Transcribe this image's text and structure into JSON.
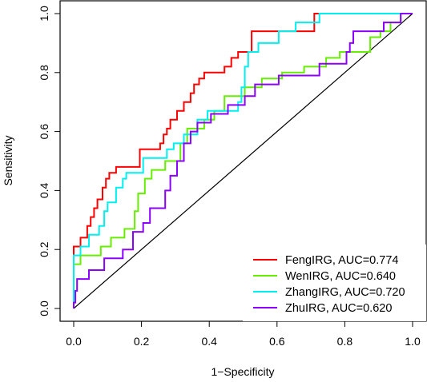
{
  "chart_data": {
    "type": "line",
    "xlabel": "1−Specificity",
    "ylabel": "Sensitivity",
    "xlim": [
      0,
      1
    ],
    "ylim": [
      0,
      1
    ],
    "x_ticks": [
      "0.0",
      "0.2",
      "0.4",
      "0.6",
      "0.8",
      "1.0"
    ],
    "y_ticks": [
      "0.0",
      "0.2",
      "0.4",
      "0.6",
      "0.8",
      "1.0"
    ],
    "reference_line": {
      "from": [
        0,
        0
      ],
      "to": [
        1,
        1
      ],
      "color": "#000000"
    },
    "legend_position": "bottom-right",
    "series": [
      {
        "name": "FengIRG, AUC=0.774",
        "color": "#ff0000",
        "points": [
          [
            0,
            0
          ],
          [
            0,
            0.21
          ],
          [
            0.02,
            0.21
          ],
          [
            0.02,
            0.24
          ],
          [
            0.04,
            0.24
          ],
          [
            0.04,
            0.28
          ],
          [
            0.05,
            0.28
          ],
          [
            0.05,
            0.31
          ],
          [
            0.06,
            0.31
          ],
          [
            0.06,
            0.34
          ],
          [
            0.07,
            0.34
          ],
          [
            0.07,
            0.37
          ],
          [
            0.085,
            0.37
          ],
          [
            0.085,
            0.41
          ],
          [
            0.095,
            0.41
          ],
          [
            0.095,
            0.44
          ],
          [
            0.105,
            0.44
          ],
          [
            0.105,
            0.46
          ],
          [
            0.125,
            0.46
          ],
          [
            0.125,
            0.48
          ],
          [
            0.195,
            0.48
          ],
          [
            0.195,
            0.54
          ],
          [
            0.255,
            0.54
          ],
          [
            0.255,
            0.56
          ],
          [
            0.265,
            0.56
          ],
          [
            0.265,
            0.59
          ],
          [
            0.275,
            0.59
          ],
          [
            0.275,
            0.61
          ],
          [
            0.285,
            0.61
          ],
          [
            0.285,
            0.64
          ],
          [
            0.305,
            0.64
          ],
          [
            0.305,
            0.67
          ],
          [
            0.325,
            0.67
          ],
          [
            0.325,
            0.7
          ],
          [
            0.345,
            0.7
          ],
          [
            0.345,
            0.73
          ],
          [
            0.355,
            0.73
          ],
          [
            0.355,
            0.76
          ],
          [
            0.37,
            0.76
          ],
          [
            0.37,
            0.78
          ],
          [
            0.385,
            0.78
          ],
          [
            0.385,
            0.8
          ],
          [
            0.445,
            0.8
          ],
          [
            0.445,
            0.82
          ],
          [
            0.465,
            0.82
          ],
          [
            0.465,
            0.85
          ],
          [
            0.485,
            0.85
          ],
          [
            0.485,
            0.87
          ],
          [
            0.525,
            0.87
          ],
          [
            0.525,
            0.94
          ],
          [
            0.71,
            0.94
          ],
          [
            0.71,
            1.0
          ],
          [
            1,
            1
          ]
        ]
      },
      {
        "name": "WenIRG, AUC=0.640",
        "color": "#66ee00",
        "points": [
          [
            0,
            0
          ],
          [
            0,
            0.15
          ],
          [
            0.02,
            0.15
          ],
          [
            0.02,
            0.18
          ],
          [
            0.08,
            0.18
          ],
          [
            0.08,
            0.21
          ],
          [
            0.11,
            0.21
          ],
          [
            0.11,
            0.24
          ],
          [
            0.15,
            0.24
          ],
          [
            0.15,
            0.27
          ],
          [
            0.18,
            0.27
          ],
          [
            0.18,
            0.33
          ],
          [
            0.19,
            0.33
          ],
          [
            0.19,
            0.39
          ],
          [
            0.21,
            0.39
          ],
          [
            0.21,
            0.44
          ],
          [
            0.23,
            0.44
          ],
          [
            0.23,
            0.47
          ],
          [
            0.27,
            0.47
          ],
          [
            0.27,
            0.5
          ],
          [
            0.315,
            0.5
          ],
          [
            0.315,
            0.56
          ],
          [
            0.335,
            0.56
          ],
          [
            0.335,
            0.61
          ],
          [
            0.385,
            0.61
          ],
          [
            0.385,
            0.64
          ],
          [
            0.415,
            0.64
          ],
          [
            0.415,
            0.67
          ],
          [
            0.445,
            0.67
          ],
          [
            0.445,
            0.72
          ],
          [
            0.505,
            0.72
          ],
          [
            0.505,
            0.75
          ],
          [
            0.555,
            0.75
          ],
          [
            0.555,
            0.78
          ],
          [
            0.615,
            0.78
          ],
          [
            0.615,
            0.8
          ],
          [
            0.68,
            0.8
          ],
          [
            0.68,
            0.82
          ],
          [
            0.745,
            0.82
          ],
          [
            0.745,
            0.85
          ],
          [
            0.785,
            0.85
          ],
          [
            0.785,
            0.87
          ],
          [
            0.875,
            0.87
          ],
          [
            0.875,
            0.92
          ],
          [
            0.905,
            0.92
          ],
          [
            0.905,
            0.94
          ],
          [
            0.935,
            0.94
          ],
          [
            0.935,
            0.97
          ],
          [
            0.965,
            0.97
          ],
          [
            0.965,
            1.0
          ],
          [
            1,
            1
          ]
        ]
      },
      {
        "name": "ZhangIRG, AUC=0.720",
        "color": "#00f0f0",
        "points": [
          [
            0,
            0
          ],
          [
            0,
            0.18
          ],
          [
            0.02,
            0.18
          ],
          [
            0.02,
            0.21
          ],
          [
            0.045,
            0.21
          ],
          [
            0.045,
            0.25
          ],
          [
            0.075,
            0.25
          ],
          [
            0.075,
            0.28
          ],
          [
            0.09,
            0.28
          ],
          [
            0.09,
            0.33
          ],
          [
            0.1,
            0.33
          ],
          [
            0.1,
            0.36
          ],
          [
            0.125,
            0.36
          ],
          [
            0.125,
            0.41
          ],
          [
            0.145,
            0.41
          ],
          [
            0.145,
            0.44
          ],
          [
            0.155,
            0.44
          ],
          [
            0.155,
            0.46
          ],
          [
            0.205,
            0.46
          ],
          [
            0.205,
            0.51
          ],
          [
            0.275,
            0.51
          ],
          [
            0.275,
            0.54
          ],
          [
            0.295,
            0.54
          ],
          [
            0.295,
            0.56
          ],
          [
            0.325,
            0.56
          ],
          [
            0.325,
            0.59
          ],
          [
            0.365,
            0.59
          ],
          [
            0.365,
            0.64
          ],
          [
            0.395,
            0.64
          ],
          [
            0.395,
            0.67
          ],
          [
            0.485,
            0.67
          ],
          [
            0.485,
            0.7
          ],
          [
            0.495,
            0.7
          ],
          [
            0.495,
            0.75
          ],
          [
            0.505,
            0.75
          ],
          [
            0.505,
            0.82
          ],
          [
            0.515,
            0.82
          ],
          [
            0.515,
            0.87
          ],
          [
            0.545,
            0.87
          ],
          [
            0.545,
            0.9
          ],
          [
            0.605,
            0.9
          ],
          [
            0.605,
            0.94
          ],
          [
            0.655,
            0.94
          ],
          [
            0.655,
            0.97
          ],
          [
            0.725,
            0.97
          ],
          [
            0.725,
            1.0
          ],
          [
            1,
            1
          ]
        ]
      },
      {
        "name": "ZhuIRG, AUC=0.620",
        "color": "#8b00ff",
        "points": [
          [
            0,
            0
          ],
          [
            0,
            0.02
          ],
          [
            0.005,
            0.02
          ],
          [
            0.005,
            0.06
          ],
          [
            0.01,
            0.06
          ],
          [
            0.01,
            0.1
          ],
          [
            0.045,
            0.1
          ],
          [
            0.045,
            0.13
          ],
          [
            0.09,
            0.13
          ],
          [
            0.09,
            0.17
          ],
          [
            0.145,
            0.17
          ],
          [
            0.145,
            0.2
          ],
          [
            0.175,
            0.2
          ],
          [
            0.175,
            0.26
          ],
          [
            0.205,
            0.26
          ],
          [
            0.205,
            0.29
          ],
          [
            0.225,
            0.29
          ],
          [
            0.225,
            0.34
          ],
          [
            0.27,
            0.34
          ],
          [
            0.27,
            0.4
          ],
          [
            0.285,
            0.4
          ],
          [
            0.285,
            0.45
          ],
          [
            0.305,
            0.45
          ],
          [
            0.305,
            0.5
          ],
          [
            0.325,
            0.5
          ],
          [
            0.325,
            0.56
          ],
          [
            0.345,
            0.56
          ],
          [
            0.345,
            0.6
          ],
          [
            0.365,
            0.6
          ],
          [
            0.365,
            0.63
          ],
          [
            0.405,
            0.63
          ],
          [
            0.405,
            0.66
          ],
          [
            0.455,
            0.66
          ],
          [
            0.455,
            0.69
          ],
          [
            0.505,
            0.69
          ],
          [
            0.505,
            0.72
          ],
          [
            0.535,
            0.72
          ],
          [
            0.535,
            0.76
          ],
          [
            0.605,
            0.76
          ],
          [
            0.605,
            0.79
          ],
          [
            0.725,
            0.79
          ],
          [
            0.725,
            0.83
          ],
          [
            0.805,
            0.83
          ],
          [
            0.805,
            0.87
          ],
          [
            0.815,
            0.87
          ],
          [
            0.815,
            0.9
          ],
          [
            0.825,
            0.9
          ],
          [
            0.825,
            0.94
          ],
          [
            0.915,
            0.94
          ],
          [
            0.915,
            0.97
          ],
          [
            0.965,
            0.97
          ],
          [
            0.965,
            1.0
          ],
          [
            1,
            1
          ]
        ]
      }
    ]
  }
}
